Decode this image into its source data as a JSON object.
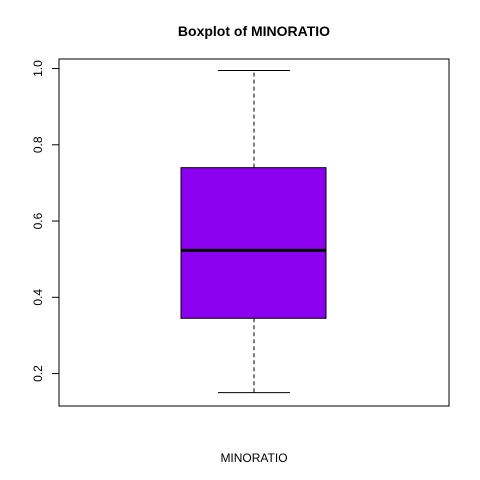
{
  "chart_data": {
    "type": "boxplot",
    "title": "Boxplot of MINORATIO",
    "xlabel": "MINORATIO",
    "ylabel": "",
    "ylim": [
      0.115,
      1.025
    ],
    "yticks": [
      0.2,
      0.4,
      0.6,
      0.8,
      1.0
    ],
    "ytick_labels": [
      "0.2",
      "0.4",
      "0.6",
      "0.8",
      "1.0"
    ],
    "grid": false,
    "box": {
      "whisker_low": 0.15,
      "q1": 0.345,
      "median": 0.523,
      "q3": 0.74,
      "whisker_high": 0.995,
      "fill": "#8B00EE"
    }
  }
}
